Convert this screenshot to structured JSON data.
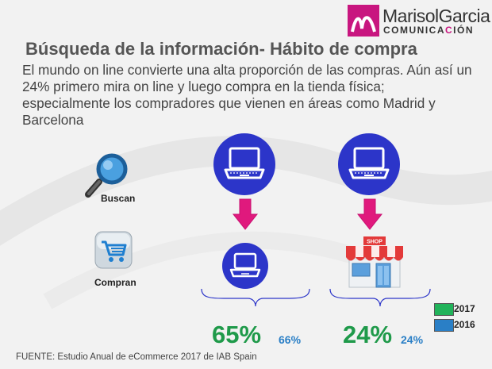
{
  "logo": {
    "name": "MarisolGarcia",
    "sub_prefix": "COMUNICA",
    "sub_highlight": "C",
    "sub_suffix": "IÓN"
  },
  "title": "Búsqueda de la información- Hábito de compra",
  "body": "El mundo on line convierte una alta proporción de las compras. Aún así un 24% primero mira on line y luego compra en la tienda física; especialmente los compradores que vienen en áreas como Madrid y Barcelona",
  "rows": {
    "search_label": "Buscan",
    "buy_label": "Compran"
  },
  "shop_sign": "SHOP",
  "online": {
    "pct_2017": "65%",
    "pct_2016": "66%"
  },
  "store": {
    "pct_2017": "24%",
    "pct_2016": "24%"
  },
  "legend": [
    {
      "label": "2017",
      "color": "#21b35a"
    },
    {
      "label": "2016",
      "color": "#2a7fc6"
    }
  ],
  "colors": {
    "accent": "#c8167f",
    "circle": "#2c35c9",
    "arrow": "#e0197d"
  },
  "source": "FUENTE: Estudio Anual de eCommerce 2017 de IAB Spain"
}
